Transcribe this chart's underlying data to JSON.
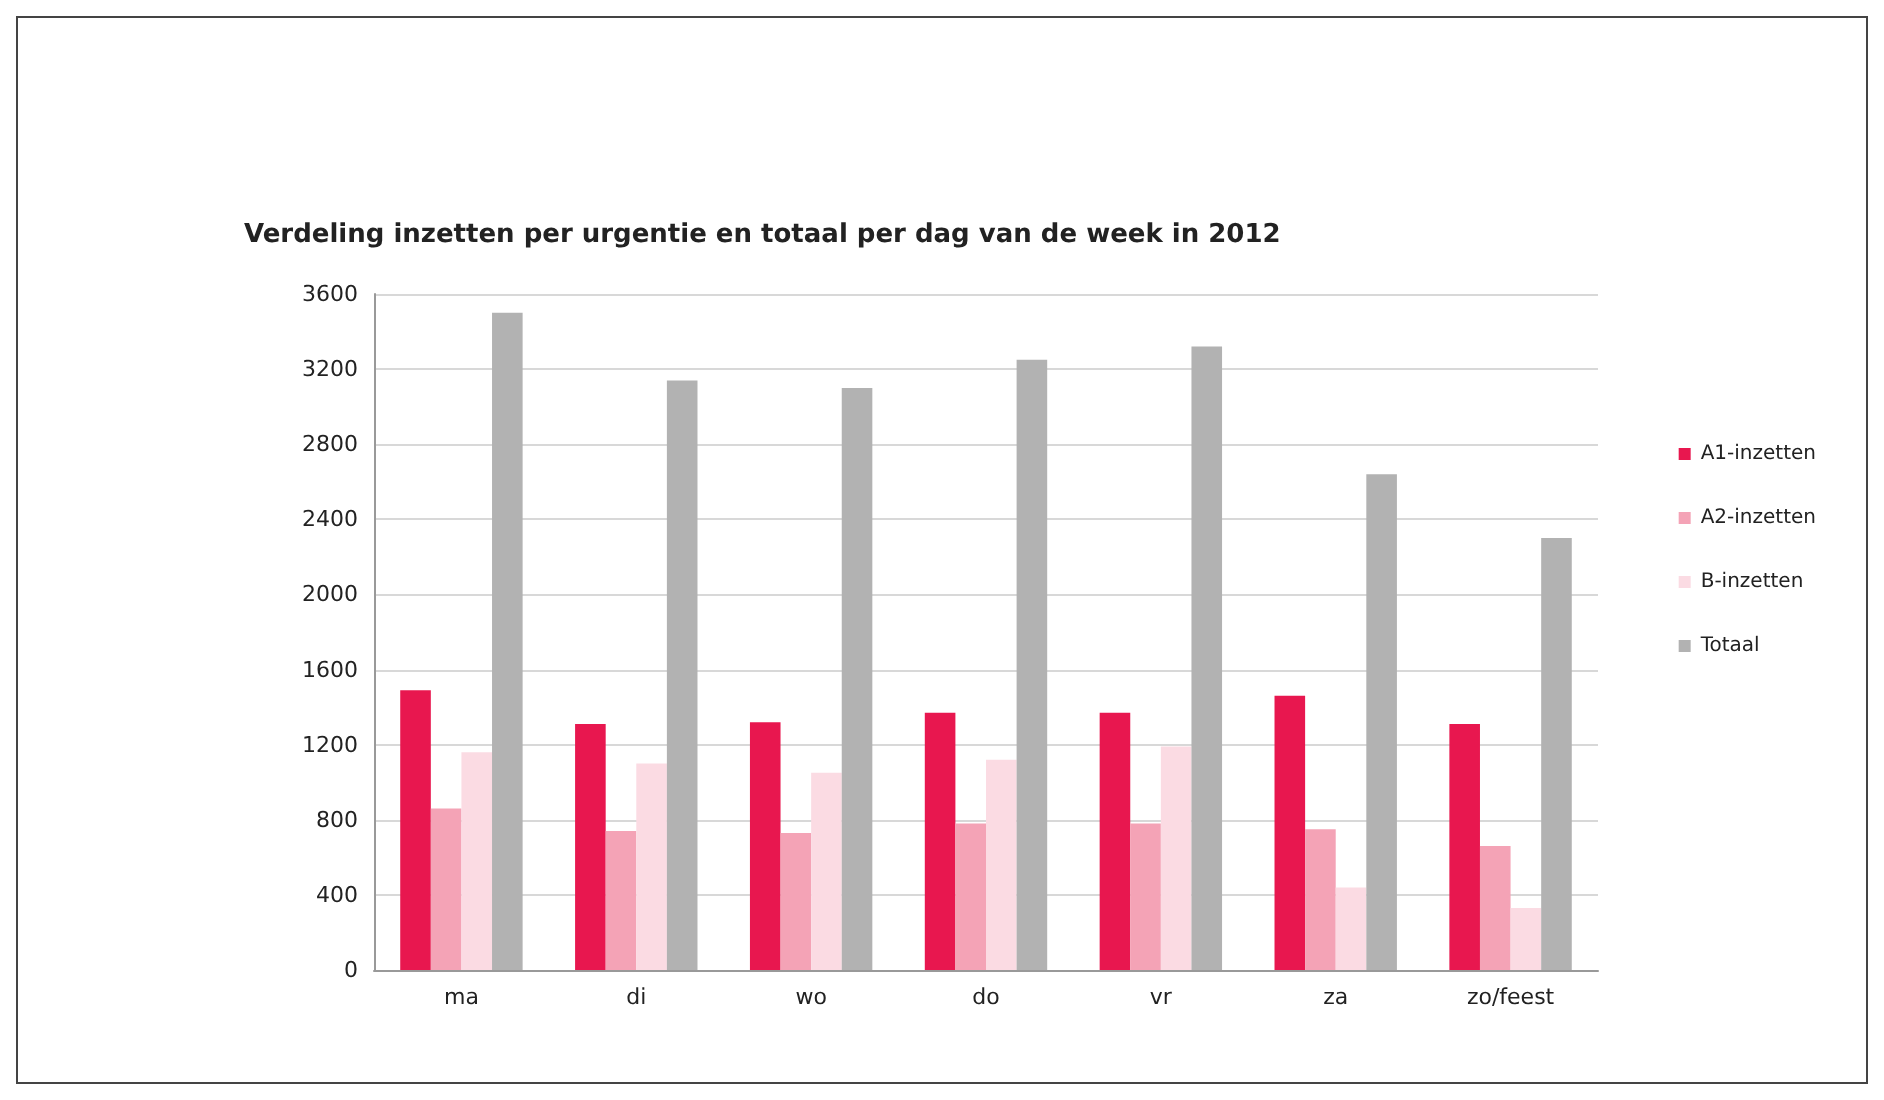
{
  "chart_data": {
    "type": "bar",
    "title": "Verdeling inzetten per urgentie en totaal per dag van de week in 2012",
    "categories": [
      "ma",
      "di",
      "wo",
      "do",
      "vr",
      "za",
      "zo/feest"
    ],
    "series": [
      {
        "name": "A1-inzetten",
        "color": "#e8174f",
        "values": [
          1490,
          1310,
          1320,
          1370,
          1370,
          1460,
          1310
        ]
      },
      {
        "name": "A2-inzetten",
        "color": "#f4a3b6",
        "values": [
          860,
          740,
          730,
          780,
          780,
          750,
          660
        ]
      },
      {
        "name": "B-inzetten",
        "color": "#fbdbe3",
        "values": [
          1160,
          1100,
          1050,
          1120,
          1190,
          440,
          330
        ]
      },
      {
        "name": "Totaal",
        "color": "#b2b2b2",
        "values": [
          3500,
          3140,
          3100,
          3250,
          3320,
          2640,
          2300
        ]
      }
    ],
    "ylim": [
      0,
      3600
    ],
    "yticks": [
      0,
      400,
      800,
      1200,
      1600,
      2000,
      2400,
      2800,
      3200,
      3600
    ],
    "grid": "y",
    "legend": "right"
  }
}
